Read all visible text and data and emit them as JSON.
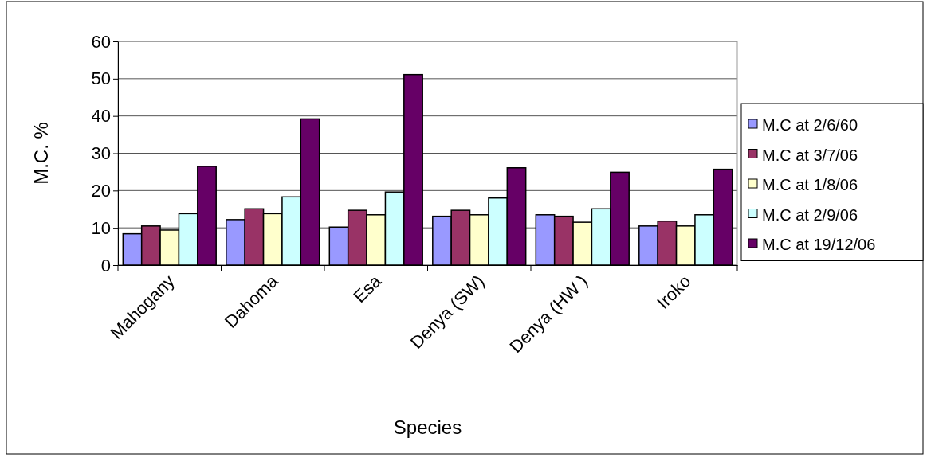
{
  "chart_data": {
    "type": "bar",
    "xlabel": "Species",
    "ylabel": "M.C. %",
    "categories": [
      "Mahogany",
      "Dahoma",
      "Esa",
      "Denya (SW)",
      "Denya (HW )",
      "Iroko"
    ],
    "series": [
      {
        "name": "M.C at 2/6/60",
        "color": "#9999ff",
        "values": [
          8.4,
          12.2,
          10.2,
          13.1,
          13.5,
          10.5
        ]
      },
      {
        "name": "M.C at 3/7/06",
        "color": "#993366",
        "values": [
          10.5,
          15.1,
          14.7,
          14.7,
          13.1,
          11.8
        ]
      },
      {
        "name": "M.C at 1/8/06",
        "color": "#ffffcc",
        "values": [
          9.4,
          13.8,
          13.5,
          13.5,
          11.5,
          10.5
        ]
      },
      {
        "name": "M.C at 2/9/06",
        "color": "#ccffff",
        "values": [
          13.8,
          18.3,
          19.6,
          18.0,
          15.1,
          13.5
        ]
      },
      {
        "name": "M.C at 19/12/06",
        "color": "#660066",
        "values": [
          26.5,
          39.2,
          51.1,
          26.1,
          24.9,
          25.7
        ]
      }
    ],
    "ylim": [
      0,
      60
    ],
    "yticks": [
      0,
      10,
      20,
      30,
      40,
      50,
      60
    ],
    "grid": "y",
    "legend": "right"
  }
}
